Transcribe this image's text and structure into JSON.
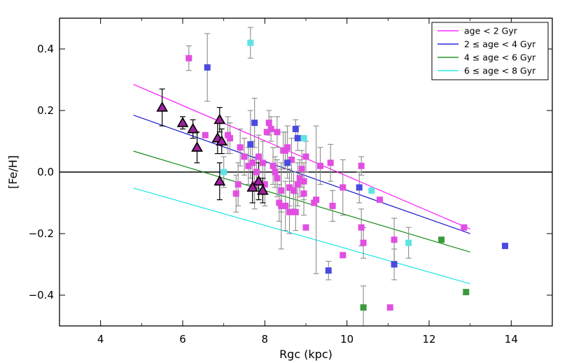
{
  "chart_data": {
    "type": "scatter",
    "xlabel": "Rgc (kpc)",
    "ylabel": "[Fe/H]",
    "xlim": [
      3,
      15
    ],
    "ylim": [
      -0.5,
      0.5
    ],
    "xticks": [
      4,
      6,
      8,
      10,
      12,
      14
    ],
    "xtick_labels": [
      "4",
      "6",
      "8",
      "10",
      "12",
      "14"
    ],
    "yticks": [
      -0.4,
      -0.2,
      0.0,
      0.2,
      0.4
    ],
    "ytick_labels": [
      "−0.4",
      "−0.2",
      "0.0",
      "0.2",
      "0.4"
    ],
    "reference_line_y": 0.0,
    "legend_position": "top-right",
    "colors": {
      "magenta": "#ff00ff",
      "blue": "#0000cc",
      "green": "#008000",
      "cyan": "#00e5e5",
      "sq_magenta": "#e14ee1",
      "sq_blue": "#4a4ae0",
      "sq_green": "#3a9a3a",
      "sq_cyan": "#5ee4e4",
      "triangle_fill": "#a020a0",
      "errorbar": "#8c8c8c"
    },
    "legend": [
      {
        "label": "age < 2 Gyr",
        "color": "#ff00ff"
      },
      {
        "label": "2 ≤ age < 4 Gyr",
        "color": "#0000cc"
      },
      {
        "label": "4 ≤ age < 6 Gyr",
        "color": "#008000"
      },
      {
        "label": "6 ≤ age < 8 Gyr",
        "color": "#00e5e5"
      }
    ],
    "fit_lines": [
      {
        "name": "age < 2 Gyr",
        "color": "#ff00ff",
        "x": [
          4.8,
          13.0
        ],
        "y": [
          0.285,
          -0.185
        ]
      },
      {
        "name": "2-4 Gyr",
        "color": "#0000cc",
        "x": [
          4.8,
          13.0
        ],
        "y": [
          0.185,
          -0.2
        ]
      },
      {
        "name": "4-6 Gyr",
        "color": "#008000",
        "x": [
          4.8,
          13.0
        ],
        "y": [
          0.068,
          -0.26
        ]
      },
      {
        "name": "6-8 Gyr",
        "color": "#00e5e5",
        "x": [
          4.8,
          13.0
        ],
        "y": [
          -0.052,
          -0.363
        ]
      }
    ],
    "series": [
      {
        "name": "age < 2 Gyr",
        "marker": "square",
        "color_key": "sq_magenta",
        "points": [
          [
            6.15,
            0.37,
            0.04
          ],
          [
            6.55,
            0.12,
            0.0
          ],
          [
            7.1,
            0.12,
            0.06
          ],
          [
            7.15,
            0.11,
            0.05
          ],
          [
            7.3,
            -0.07,
            0.06
          ],
          [
            7.35,
            -0.04,
            0.07
          ],
          [
            7.4,
            0.08,
            0.06
          ],
          [
            7.5,
            0.05,
            0.06
          ],
          [
            7.6,
            0.02,
            0.06
          ],
          [
            7.7,
            0.03,
            0.07
          ],
          [
            7.75,
            -0.04,
            0.08
          ],
          [
            7.8,
            0.0,
            0.05
          ],
          [
            7.85,
            0.05,
            0.07
          ],
          [
            7.95,
            0.03,
            0.07
          ],
          [
            8.0,
            -0.04,
            0.07
          ],
          [
            8.05,
            0.13,
            0.0
          ],
          [
            8.1,
            0.16,
            0.04
          ],
          [
            8.15,
            0.14,
            0.04
          ],
          [
            8.2,
            0.02,
            0.06
          ],
          [
            8.25,
            0.0,
            0.05
          ],
          [
            8.3,
            0.13,
            0.05
          ],
          [
            8.3,
            -0.02,
            0.06
          ],
          [
            8.35,
            -0.1,
            0.06
          ],
          [
            8.4,
            -0.06,
            0.07
          ],
          [
            8.4,
            -0.11,
            0.14
          ],
          [
            8.45,
            0.07,
            0.06
          ],
          [
            8.5,
            -0.11,
            0.08
          ],
          [
            8.5,
            0.07,
            0.06
          ],
          [
            8.55,
            0.08,
            0.07
          ],
          [
            8.6,
            -0.05,
            0.06
          ],
          [
            8.6,
            -0.13,
            0.07
          ],
          [
            8.65,
            0.04,
            0.07
          ],
          [
            8.7,
            -0.06,
            0.06
          ],
          [
            8.75,
            -0.13,
            0.06
          ],
          [
            8.8,
            -0.04,
            0.07
          ],
          [
            8.85,
            -0.02,
            0.06
          ],
          [
            8.9,
            0.01,
            0.06
          ],
          [
            8.95,
            -0.03,
            0.06
          ],
          [
            8.95,
            -0.07,
            0.07
          ],
          [
            9.0,
            -0.18,
            0.0
          ],
          [
            9.0,
            0.05,
            0.05
          ],
          [
            9.2,
            -0.1,
            0.0
          ],
          [
            9.25,
            -0.09,
            0.24
          ],
          [
            9.35,
            0.02,
            0.06
          ],
          [
            9.6,
            0.03,
            0.06
          ],
          [
            9.65,
            -0.11,
            0.05
          ],
          [
            9.9,
            -0.05,
            0.09
          ],
          [
            9.9,
            -0.27,
            0.0
          ],
          [
            10.35,
            0.02,
            0.03
          ],
          [
            10.35,
            -0.18,
            0.06
          ],
          [
            10.4,
            -0.23,
            0.05
          ],
          [
            10.8,
            -0.09,
            0.0
          ],
          [
            11.05,
            -0.44,
            0.0
          ],
          [
            11.15,
            -0.22,
            0.07
          ],
          [
            12.85,
            -0.18,
            0.0
          ]
        ]
      },
      {
        "name": "2-4 Gyr",
        "marker": "square",
        "color_key": "sq_blue",
        "points": [
          [
            6.6,
            0.34,
            0.11
          ],
          [
            7.65,
            0.09,
            0.11
          ],
          [
            7.75,
            0.16,
            0.08
          ],
          [
            8.55,
            0.03,
            0.05
          ],
          [
            8.75,
            0.14,
            0.03
          ],
          [
            8.8,
            0.11,
            0.04
          ],
          [
            9.55,
            -0.32,
            0.03
          ],
          [
            10.3,
            -0.05,
            0.05
          ],
          [
            11.15,
            -0.3,
            0.05
          ],
          [
            13.85,
            -0.24,
            0.0
          ]
        ]
      },
      {
        "name": "4-6 Gyr",
        "marker": "square",
        "color_key": "sq_green",
        "points": [
          [
            10.4,
            -0.44,
            0.07
          ],
          [
            12.3,
            -0.22,
            0.0
          ],
          [
            12.9,
            -0.39,
            0.0
          ]
        ]
      },
      {
        "name": "6-8 Gyr",
        "marker": "square",
        "color_key": "sq_cyan",
        "points": [
          [
            7.65,
            0.42,
            0.05
          ],
          [
            7.0,
            0.0,
            0.05
          ],
          [
            8.95,
            0.11,
            0.0
          ],
          [
            10.6,
            -0.06,
            0.0
          ],
          [
            11.5,
            -0.23,
            0.05
          ]
        ]
      },
      {
        "name": "triangles",
        "marker": "triangle",
        "color_key": "triangle_fill",
        "points": [
          [
            5.5,
            0.21,
            0.06
          ],
          [
            6.0,
            0.16,
            0.02
          ],
          [
            6.25,
            0.14,
            0.03
          ],
          [
            6.35,
            0.08,
            0.05
          ],
          [
            6.85,
            0.11,
            0.05
          ],
          [
            6.9,
            0.17,
            0.04
          ],
          [
            6.95,
            0.1,
            0.04
          ],
          [
            6.9,
            -0.03,
            0.06
          ],
          [
            7.7,
            -0.05,
            0.05
          ],
          [
            7.85,
            -0.03,
            0.06
          ],
          [
            7.95,
            -0.06,
            0.04
          ]
        ]
      }
    ]
  }
}
